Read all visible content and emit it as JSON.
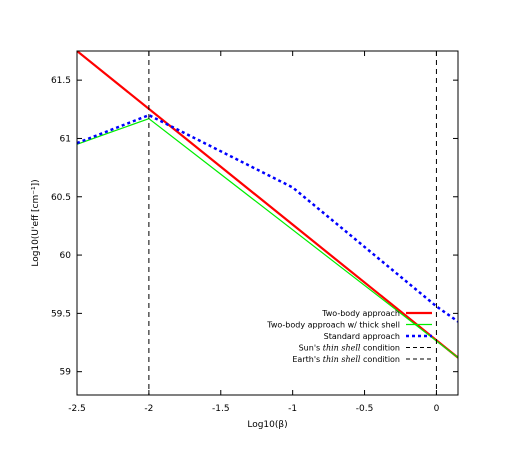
{
  "chart_data": {
    "type": "line",
    "title": "",
    "xlabel": "Log10(β)",
    "ylabel": "Log10(U'eff [cm⁻¹])",
    "xlim": [
      -2.5,
      0.15
    ],
    "ylim": [
      58.8,
      61.75
    ],
    "xticks": [
      -2.5,
      -2,
      -1.5,
      -1,
      -0.5,
      0
    ],
    "xtick_labels": [
      "-2.5",
      "-2",
      "-1.5",
      "-1",
      "-0.5",
      "0"
    ],
    "yticks": [
      59,
      59.5,
      60,
      60.5,
      61,
      61.5
    ],
    "ytick_labels": [
      "59",
      "59.5",
      "60",
      "60.5",
      "61",
      "61.5"
    ],
    "grid": false,
    "legend_position": "bottom-right",
    "series": [
      {
        "name": "Two-body approach",
        "color": "#ff0000",
        "style": "solid",
        "x": [
          -2.5,
          0.15
        ],
        "y": [
          61.75,
          59.12
        ]
      },
      {
        "name": "Two-body approach w/ thick shell",
        "color": "#00ee00",
        "style": "solid",
        "x": [
          -2.5,
          -2.0,
          0.15
        ],
        "y": [
          60.95,
          61.17,
          59.12
        ]
      },
      {
        "name": "Standard approach",
        "color": "#0000ff",
        "style": "dotted",
        "x": [
          -2.5,
          -2.0,
          -1.0,
          0.0,
          0.15
        ],
        "y": [
          60.96,
          61.2,
          60.58,
          59.56,
          59.43
        ]
      }
    ],
    "vlines": [
      {
        "name_prefix": "Sun's ",
        "name_italic": "thin shell",
        "name_suffix": " condition",
        "x": -2,
        "color": "#000000",
        "style": "dashed"
      },
      {
        "name_prefix": "Earth's ",
        "name_italic": "thin shell",
        "name_suffix": " condition",
        "x": 0,
        "color": "#000000",
        "style": "dashed"
      }
    ]
  }
}
